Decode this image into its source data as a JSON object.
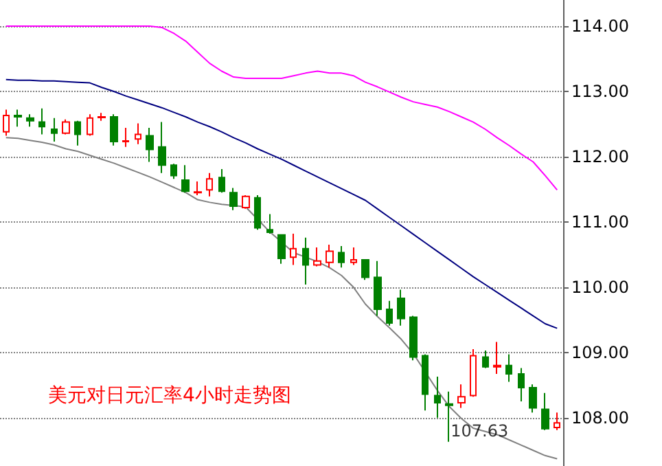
{
  "chart_data": {
    "type": "candlestick",
    "title": "美元对日元汇率4小时走势图",
    "categories": [
      null,
      null,
      null,
      null,
      null,
      null,
      null,
      null,
      null,
      null,
      null,
      null,
      null,
      null,
      null,
      null,
      null,
      null,
      null,
      null,
      null,
      null,
      null,
      null,
      null,
      null,
      null,
      null,
      null,
      null,
      null,
      null,
      null,
      null,
      null,
      null,
      null,
      null,
      null,
      null,
      null,
      null,
      null,
      null,
      null,
      null,
      null
    ],
    "ohlc": [
      [
        112.38,
        112.72,
        112.32,
        112.63
      ],
      [
        112.63,
        112.72,
        112.46,
        112.61
      ],
      [
        112.59,
        112.65,
        112.46,
        112.55
      ],
      [
        112.53,
        112.74,
        112.34,
        112.46
      ],
      [
        112.42,
        112.59,
        112.23,
        112.36
      ],
      [
        112.36,
        112.57,
        112.34,
        112.53
      ],
      [
        112.53,
        112.55,
        112.17,
        112.34
      ],
      [
        112.34,
        112.65,
        112.32,
        112.59
      ],
      [
        112.6,
        112.67,
        112.55,
        112.61
      ],
      [
        112.61,
        112.65,
        112.17,
        112.23
      ],
      [
        112.23,
        112.44,
        112.15,
        112.24
      ],
      [
        112.27,
        112.51,
        112.19,
        112.34
      ],
      [
        112.32,
        112.44,
        111.92,
        112.11
      ],
      [
        112.15,
        112.53,
        111.75,
        111.87
      ],
      [
        111.87,
        111.89,
        111.66,
        111.71
      ],
      [
        111.64,
        111.87,
        111.45,
        111.47
      ],
      [
        111.45,
        111.62,
        111.41,
        111.46
      ],
      [
        111.49,
        111.75,
        111.39,
        111.66
      ],
      [
        111.68,
        111.81,
        111.45,
        111.47
      ],
      [
        111.45,
        111.52,
        111.18,
        111.24
      ],
      [
        111.22,
        111.41,
        111.2,
        111.39
      ],
      [
        111.37,
        111.41,
        110.88,
        110.91
      ],
      [
        110.88,
        111.12,
        110.82,
        110.84
      ],
      [
        110.8,
        110.8,
        110.36,
        110.44
      ],
      [
        110.46,
        110.82,
        110.34,
        110.59
      ],
      [
        110.59,
        110.76,
        110.04,
        110.34
      ],
      [
        110.34,
        110.61,
        110.32,
        110.4
      ],
      [
        110.38,
        110.65,
        110.3,
        110.55
      ],
      [
        110.53,
        110.63,
        110.3,
        110.38
      ],
      [
        110.38,
        110.61,
        110.34,
        110.42
      ],
      [
        110.42,
        110.42,
        110.11,
        110.15
      ],
      [
        110.15,
        110.4,
        109.56,
        109.66
      ],
      [
        109.66,
        109.79,
        109.41,
        109.45
      ],
      [
        109.83,
        109.96,
        109.41,
        109.52
      ],
      [
        109.54,
        109.56,
        108.88,
        108.93
      ],
      [
        108.95,
        108.97,
        108.11,
        108.36
      ],
      [
        108.34,
        108.63,
        108,
        108.23
      ],
      [
        108.21,
        108.4,
        107.63,
        108.19
      ],
      [
        108.23,
        108.51,
        108.15,
        108.32
      ],
      [
        108.34,
        109.05,
        108.32,
        108.95
      ],
      [
        108.93,
        109.03,
        108.76,
        108.78
      ],
      [
        108.78,
        109.16,
        108.67,
        108.8
      ],
      [
        108.8,
        108.97,
        108.55,
        108.67
      ],
      [
        108.67,
        108.76,
        108.25,
        108.46
      ],
      [
        108.46,
        108.51,
        108.08,
        108.15
      ],
      [
        108.13,
        108.38,
        107.81,
        107.83
      ],
      [
        107.85,
        108.08,
        107.81,
        107.92
      ]
    ],
    "colors": [
      "#ff0000",
      "#008000",
      "#008000",
      "#008000",
      "#008000",
      "#ff0000",
      "#008000",
      "#ff0000",
      "#ff0000",
      "#008000",
      "#ff0000",
      "#ff0000",
      "#008000",
      "#008000",
      "#008000",
      "#008000",
      "#ff0000",
      "#ff0000",
      "#008000",
      "#008000",
      "#ff0000",
      "#008000",
      "#008000",
      "#008000",
      "#ff0000",
      "#008000",
      "#ff0000",
      "#ff0000",
      "#008000",
      "#ff0000",
      "#008000",
      "#008000",
      "#008000",
      "#008000",
      "#008000",
      "#008000",
      "#008000",
      "#008000",
      "#ff0000",
      "#ff0000",
      "#008000",
      "#ff0000",
      "#008000",
      "#008000",
      "#008000",
      "#008000",
      "#ff0000"
    ],
    "series": [
      {
        "type": "line",
        "color": "#ff00ff",
        "values": [
          114,
          114,
          114,
          114,
          114,
          114,
          114,
          114,
          114,
          114,
          114,
          114,
          114,
          113.98,
          113.89,
          113.77,
          113.6,
          113.43,
          113.31,
          113.22,
          113.2,
          113.2,
          113.2,
          113.2,
          113.24,
          113.28,
          113.31,
          113.28,
          113.28,
          113.24,
          113.14,
          113.07,
          112.99,
          112.91,
          112.84,
          112.8,
          112.76,
          112.69,
          112.61,
          112.53,
          112.42,
          112.29,
          112.17,
          112.04,
          111.92,
          111.71,
          111.49
        ]
      },
      {
        "type": "line",
        "color": "#000080",
        "values": [
          113.18,
          113.17,
          113.17,
          113.16,
          113.16,
          113.15,
          113.14,
          113.13,
          113.06,
          113,
          112.93,
          112.87,
          112.81,
          112.75,
          112.68,
          112.61,
          112.53,
          112.46,
          112.38,
          112.29,
          112.21,
          112.12,
          112.04,
          111.96,
          111.87,
          111.78,
          111.69,
          111.6,
          111.51,
          111.42,
          111.33,
          111.2,
          111.07,
          110.94,
          110.81,
          110.68,
          110.55,
          110.42,
          110.29,
          110.16,
          110.04,
          109.92,
          109.8,
          109.68,
          109.56,
          109.44,
          109.37
        ]
      },
      {
        "type": "line",
        "color": "#808080",
        "values": [
          112.29,
          112.28,
          112.25,
          112.22,
          112.18,
          112.12,
          112.08,
          112.02,
          111.96,
          111.9,
          111.83,
          111.76,
          111.69,
          111.61,
          111.53,
          111.45,
          111.34,
          111.3,
          111.27,
          111.25,
          111.23,
          111.04,
          110.85,
          110.69,
          110.53,
          110.46,
          110.39,
          110.3,
          110.18,
          110,
          109.74,
          109.55,
          109.38,
          109.2,
          108.98,
          108.7,
          108.42,
          108.17,
          107.99,
          107.84,
          107.79,
          107.74,
          107.66,
          107.58,
          107.5,
          107.42,
          107.37
        ]
      }
    ],
    "ylim": [
      107.26,
      114.4
    ],
    "yticks": [
      {
        "value": 108,
        "label": "108.00"
      },
      {
        "value": 109,
        "label": "109.00"
      },
      {
        "value": 110,
        "label": "110.00"
      },
      {
        "value": 111,
        "label": "111.00"
      },
      {
        "value": 112,
        "label": "112.00"
      },
      {
        "value": 113,
        "label": "113.00"
      },
      {
        "value": 114,
        "label": "114.00"
      }
    ],
    "grid": "y",
    "line_style": "solid",
    "annotations": [
      "107.63"
    ]
  }
}
